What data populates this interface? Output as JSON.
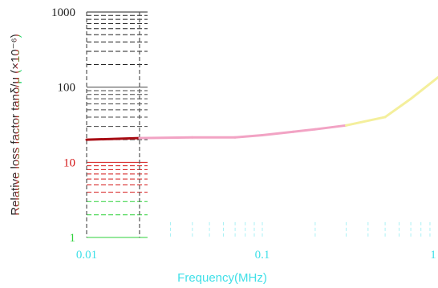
{
  "chart_data": {
    "type": "line",
    "xlabel": "Frequency(MHz)",
    "ylabel": "Relative loss factor tanδ/μ (×10⁻⁶)",
    "x_scale": "log",
    "y_scale": "log",
    "xlim": [
      0.01,
      1
    ],
    "ylim": [
      1,
      1000
    ],
    "x_ticks": [
      {
        "value": 0.01,
        "label": "0.01"
      },
      {
        "value": 0.1,
        "label": "0.1"
      },
      {
        "value": 1,
        "label": "1"
      }
    ],
    "y_ticks": [
      {
        "value": 1,
        "label": "1"
      },
      {
        "value": 10,
        "label": "10"
      },
      {
        "value": 100,
        "label": "100"
      },
      {
        "value": 1000,
        "label": "1000"
      }
    ],
    "grid": true,
    "series": [
      {
        "x": [
          0.01,
          0.02,
          0.04,
          0.07,
          0.1,
          0.15,
          0.2,
          0.3,
          0.5,
          0.7,
          1.0
        ],
        "y": [
          20,
          21,
          21.5,
          21.5,
          23,
          25.5,
          27.5,
          31,
          40,
          70,
          135
        ]
      }
    ]
  },
  "colors": {
    "axis_cyan": "#40e0e8",
    "green": "#2ed13a",
    "red": "#d41818",
    "dark": "#222222",
    "curve_dark_red": "#a80c14",
    "curve_pink": "#f2a3c4",
    "curve_yellow": "#f4ef9c"
  }
}
